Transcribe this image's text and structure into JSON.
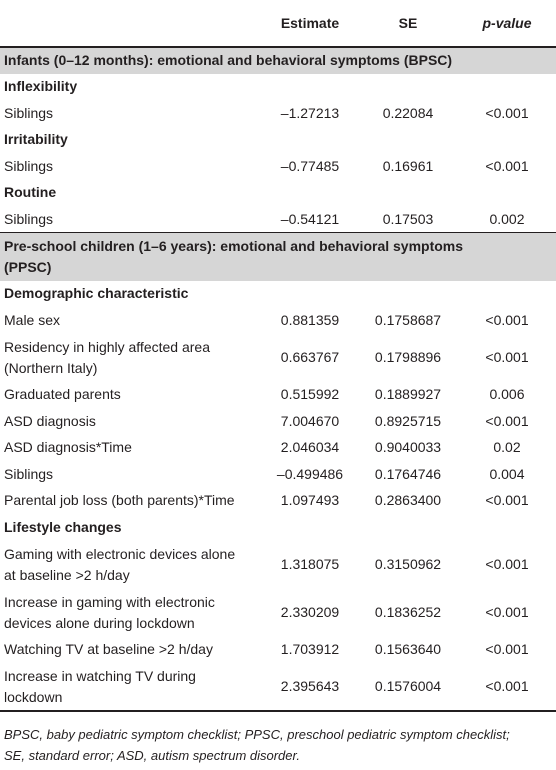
{
  "table": {
    "header": [
      "Estimate",
      "SE",
      "p-value"
    ],
    "rows": [
      {
        "section": [
          "Infants (0–12 months): emotional and behavioral symptoms (BPSC)"
        ]
      },
      {
        "group": "Inflexibility"
      },
      {
        "cells": [
          [
            "Siblings"
          ],
          "–1.27213",
          "0.22084",
          "<0.001"
        ]
      },
      {
        "group": "Irritability"
      },
      {
        "cells": [
          [
            "Siblings"
          ],
          "–0.77485",
          "0.16961",
          "<0.001"
        ]
      },
      {
        "group": "Routine"
      },
      {
        "cells": [
          [
            "Siblings"
          ],
          "–0.54121",
          "0.17503",
          "0.002"
        ]
      },
      {
        "section": [
          "Pre-school children (1–6 years): emotional and behavioral symptoms",
          "(PPSC)"
        ]
      },
      {
        "group": "Demographic characteristic"
      },
      {
        "cells": [
          [
            "Male sex"
          ],
          "0.881359",
          "0.1758687",
          "<0.001"
        ]
      },
      {
        "cells": [
          [
            "Residency in highly affected area",
            "(Northern Italy)"
          ],
          "0.663767",
          "0.1798896",
          "<0.001"
        ]
      },
      {
        "cells": [
          [
            "Graduated parents"
          ],
          "0.515992",
          "0.1889927",
          "0.006"
        ]
      },
      {
        "cells": [
          [
            "ASD diagnosis"
          ],
          "7.004670",
          "0.8925715",
          "<0.001"
        ]
      },
      {
        "cells": [
          [
            "ASD diagnosis*Time"
          ],
          "2.046034",
          "0.9040033",
          "0.02"
        ]
      },
      {
        "cells": [
          [
            "Siblings"
          ],
          "–0.499486",
          "0.1764746",
          "0.004"
        ]
      },
      {
        "cells": [
          [
            "Parental job loss (both parents)*Time"
          ],
          "1.097493",
          "0.2863400",
          "<0.001"
        ]
      },
      {
        "group": "Lifestyle changes"
      },
      {
        "cells": [
          [
            "Gaming with electronic devices alone",
            "at baseline >2 h/day"
          ],
          "1.318075",
          "0.3150962",
          "<0.001"
        ]
      },
      {
        "cells": [
          [
            "Increase in gaming with electronic",
            "devices alone during lockdown"
          ],
          "2.330209",
          "0.1836252",
          "<0.001"
        ]
      },
      {
        "cells": [
          [
            "Watching TV at baseline >2 h/day"
          ],
          "1.703912",
          "0.1563640",
          "<0.001"
        ]
      },
      {
        "cells": [
          [
            "Increase in watching TV during",
            "lockdown"
          ],
          "2.395643",
          "0.1576004",
          "<0.001"
        ]
      }
    ]
  },
  "footnote": [
    "BPSC, baby pediatric symptom checklist; PPSC, preschool pediatric symptom checklist;",
    "SE, standard error; ASD, autism spectrum disorder."
  ]
}
